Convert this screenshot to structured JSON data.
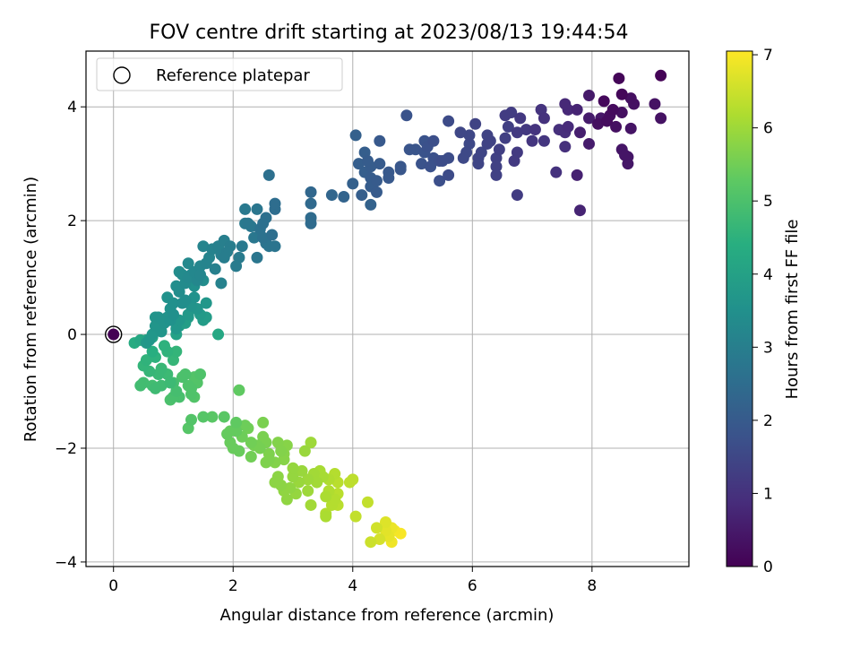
{
  "chart_data": {
    "type": "scatter",
    "title": "FOV centre drift starting at 2023/08/13 19:44:54",
    "xlabel": "Angular distance from reference (arcmin)",
    "ylabel": "Rotation from reference (arcmin)",
    "xlim": [
      -0.46,
      9.62
    ],
    "ylim": [
      -4.08,
      4.98
    ],
    "x_ticks": [
      0,
      2,
      4,
      6,
      8
    ],
    "y_ticks": [
      -4,
      -2,
      0,
      2,
      4
    ],
    "x_tick_labels": [
      "0",
      "2",
      "4",
      "6",
      "8"
    ],
    "y_tick_labels": [
      "−4",
      "−2",
      "0",
      "2",
      "4"
    ],
    "grid": true,
    "legend": {
      "placement": "upper-left",
      "entries": [
        "Reference platepar"
      ]
    },
    "reference_point": {
      "x": 0,
      "y": 0
    },
    "colorbar": {
      "label": "Hours from first FF file",
      "colormap": "viridis",
      "range": [
        0,
        7.05
      ],
      "ticks": [
        0,
        1,
        2,
        3,
        4,
        5,
        6,
        7
      ],
      "tick_labels": [
        "0",
        "1",
        "2",
        "3",
        "4",
        "5",
        "6",
        "7"
      ]
    },
    "series_note_free": true,
    "points": [
      [
        9.15,
        4.55,
        0.05
      ],
      [
        8.45,
        4.5,
        0.1
      ],
      [
        8.5,
        4.22,
        0.12
      ],
      [
        8.2,
        4.1,
        0.15
      ],
      [
        8.35,
        3.95,
        0.2
      ],
      [
        8.25,
        3.75,
        0.22
      ],
      [
        8.3,
        3.85,
        0.25
      ],
      [
        8.1,
        3.7,
        0.28
      ],
      [
        8.5,
        3.9,
        0.3
      ],
      [
        8.65,
        4.15,
        0.3
      ],
      [
        8.7,
        4.05,
        0.32
      ],
      [
        9.05,
        4.05,
        0.35
      ],
      [
        9.15,
        3.8,
        0.35
      ],
      [
        8.65,
        3.62,
        0.38
      ],
      [
        8.5,
        3.25,
        0.4
      ],
      [
        8.55,
        3.15,
        0.4
      ],
      [
        8.6,
        3.0,
        0.42
      ],
      [
        8.6,
        3.12,
        0.42
      ],
      [
        7.95,
        4.2,
        0.5
      ],
      [
        7.95,
        3.8,
        0.55
      ],
      [
        7.95,
        3.35,
        0.55
      ],
      [
        7.8,
        3.55,
        0.6
      ],
      [
        7.75,
        2.8,
        0.65
      ],
      [
        7.75,
        3.95,
        0.7
      ],
      [
        7.8,
        2.18,
        0.7
      ],
      [
        8.4,
        3.65,
        0.3
      ],
      [
        8.15,
        3.8,
        0.45
      ],
      [
        7.6,
        3.95,
        0.8
      ],
      [
        7.55,
        4.05,
        0.8
      ],
      [
        7.6,
        3.65,
        0.85
      ],
      [
        7.55,
        3.55,
        0.9
      ],
      [
        7.55,
        3.3,
        0.95
      ],
      [
        7.45,
        3.6,
        0.95
      ],
      [
        7.4,
        2.85,
        1.0
      ],
      [
        7.2,
        3.8,
        1.0
      ],
      [
        7.15,
        3.95,
        1.05
      ],
      [
        7.05,
        3.6,
        1.05
      ],
      [
        7.0,
        3.4,
        1.1
      ],
      [
        7.2,
        3.4,
        1.1
      ],
      [
        6.9,
        3.6,
        1.15
      ],
      [
        6.8,
        3.8,
        1.15
      ],
      [
        6.75,
        3.55,
        1.2
      ],
      [
        6.75,
        3.2,
        1.2
      ],
      [
        6.75,
        2.45,
        1.25
      ],
      [
        6.7,
        3.05,
        1.2
      ],
      [
        6.65,
        3.9,
        1.25
      ],
      [
        6.55,
        3.85,
        1.25
      ],
      [
        6.6,
        3.65,
        1.3
      ],
      [
        6.55,
        3.45,
        1.3
      ],
      [
        6.45,
        3.25,
        1.3
      ],
      [
        6.4,
        3.1,
        1.35
      ],
      [
        6.4,
        2.95,
        1.35
      ],
      [
        6.4,
        2.8,
        1.35
      ],
      [
        6.3,
        3.4,
        1.4
      ],
      [
        6.25,
        3.5,
        1.4
      ],
      [
        6.1,
        3.1,
        1.45
      ],
      [
        6.1,
        3.0,
        1.45
      ],
      [
        6.05,
        3.7,
        1.4
      ],
      [
        6.15,
        3.2,
        1.45
      ],
      [
        6.25,
        3.35,
        1.4
      ],
      [
        5.95,
        3.5,
        1.5
      ],
      [
        5.95,
        3.35,
        1.55
      ],
      [
        5.9,
        3.2,
        1.55
      ],
      [
        5.85,
        3.1,
        1.55
      ],
      [
        5.8,
        3.55,
        1.5
      ],
      [
        5.6,
        3.75,
        1.6
      ],
      [
        5.6,
        2.8,
        1.6
      ],
      [
        5.6,
        3.1,
        1.65
      ],
      [
        5.5,
        3.05,
        1.65
      ],
      [
        5.45,
        3.05,
        1.7
      ],
      [
        5.45,
        2.7,
        1.7
      ],
      [
        5.35,
        3.4,
        1.7
      ],
      [
        5.35,
        3.1,
        1.75
      ],
      [
        5.3,
        2.95,
        1.75
      ],
      [
        5.25,
        3.3,
        1.75
      ],
      [
        5.2,
        3.4,
        1.8
      ],
      [
        5.2,
        3.2,
        1.8
      ],
      [
        5.15,
        3.0,
        1.8
      ],
      [
        5.05,
        3.25,
        1.85
      ],
      [
        4.95,
        3.25,
        1.85
      ],
      [
        4.9,
        3.85,
        1.8
      ],
      [
        4.8,
        2.95,
        1.9
      ],
      [
        4.8,
        2.9,
        1.9
      ],
      [
        4.6,
        2.85,
        1.95
      ],
      [
        4.6,
        2.75,
        1.95
      ],
      [
        4.45,
        3.4,
        1.95
      ],
      [
        4.45,
        3.0,
        2.0
      ],
      [
        4.4,
        2.7,
        2.0
      ],
      [
        4.4,
        2.5,
        2.0
      ],
      [
        4.3,
        2.95,
        2.05
      ],
      [
        4.3,
        2.75,
        2.05
      ],
      [
        4.3,
        2.6,
        2.05
      ],
      [
        4.25,
        3.05,
        2.05
      ],
      [
        4.2,
        3.2,
        2.1
      ],
      [
        4.2,
        2.85,
        2.1
      ],
      [
        4.15,
        2.45,
        2.1
      ],
      [
        4.1,
        3.0,
        2.1
      ],
      [
        4.05,
        3.5,
        2.15
      ],
      [
        4.0,
        2.65,
        2.15
      ],
      [
        4.3,
        2.28,
        2.2
      ],
      [
        3.85,
        2.42,
        2.25
      ],
      [
        3.65,
        2.45,
        2.3
      ],
      [
        3.3,
        2.5,
        2.35
      ],
      [
        3.3,
        2.3,
        2.4
      ],
      [
        3.3,
        2.05,
        2.45
      ],
      [
        3.3,
        1.95,
        2.45
      ],
      [
        2.7,
        2.2,
        2.5
      ],
      [
        2.7,
        2.3,
        2.5
      ],
      [
        2.6,
        2.8,
        2.6
      ],
      [
        2.65,
        1.75,
        2.55
      ],
      [
        2.55,
        2.05,
        2.6
      ],
      [
        2.5,
        1.95,
        2.6
      ],
      [
        2.45,
        1.85,
        2.65
      ],
      [
        2.5,
        1.7,
        2.65
      ],
      [
        2.55,
        1.6,
        2.7
      ],
      [
        2.6,
        1.55,
        2.7
      ],
      [
        2.7,
        1.55,
        2.7
      ],
      [
        2.4,
        2.2,
        2.75
      ],
      [
        2.4,
        1.35,
        2.75
      ],
      [
        2.35,
        1.7,
        2.8
      ],
      [
        2.3,
        1.9,
        2.8
      ],
      [
        2.25,
        1.95,
        2.8
      ],
      [
        2.2,
        1.95,
        2.85
      ],
      [
        2.2,
        2.2,
        2.85
      ],
      [
        2.15,
        1.55,
        2.85
      ],
      [
        2.1,
        1.35,
        2.9
      ],
      [
        2.05,
        1.2,
        2.9
      ],
      [
        1.95,
        1.55,
        2.95
      ],
      [
        1.9,
        1.45,
        2.95
      ],
      [
        1.85,
        1.35,
        2.95
      ],
      [
        1.8,
        1.4,
        3.0
      ],
      [
        1.85,
        1.65,
        3.0
      ],
      [
        1.75,
        1.55,
        3.05
      ],
      [
        1.7,
        1.15,
        3.05
      ],
      [
        1.8,
        0.9,
        3.1
      ],
      [
        1.65,
        1.5,
        3.1
      ],
      [
        1.6,
        1.35,
        3.15
      ],
      [
        1.55,
        1.25,
        3.15
      ],
      [
        1.5,
        1.55,
        3.15
      ],
      [
        1.45,
        1.2,
        3.2
      ],
      [
        1.45,
        1.05,
        3.2
      ],
      [
        1.4,
        0.95,
        3.25
      ],
      [
        1.35,
        1.1,
        3.25
      ],
      [
        1.3,
        1.05,
        3.3
      ],
      [
        1.25,
        1.25,
        3.3
      ],
      [
        1.25,
        1.0,
        3.3
      ],
      [
        1.2,
        0.9,
        3.35
      ],
      [
        1.15,
        1.05,
        3.35
      ],
      [
        1.1,
        1.1,
        3.4
      ],
      [
        1.1,
        0.75,
        3.4
      ],
      [
        1.05,
        0.85,
        3.45
      ],
      [
        1.15,
        0.55,
        3.45
      ],
      [
        1.2,
        0.6,
        3.45
      ],
      [
        1.0,
        0.55,
        3.5
      ],
      [
        1.0,
        0.35,
        3.5
      ],
      [
        0.95,
        0.45,
        3.55
      ],
      [
        0.95,
        0.25,
        3.55
      ],
      [
        0.9,
        0.65,
        3.55
      ],
      [
        0.9,
        0.3,
        3.6
      ],
      [
        0.85,
        0.2,
        3.6
      ],
      [
        0.8,
        0.05,
        3.65
      ],
      [
        0.75,
        0.3,
        3.6
      ],
      [
        0.7,
        0.3,
        3.65
      ],
      [
        0.7,
        0.15,
        3.65
      ],
      [
        0.65,
        0.0,
        3.7
      ],
      [
        0.6,
        -0.1,
        3.7
      ],
      [
        0.55,
        -0.15,
        3.75
      ],
      [
        1.05,
        0.1,
        3.7
      ],
      [
        1.1,
        0.25,
        3.7
      ],
      [
        1.25,
        0.35,
        3.75
      ],
      [
        1.3,
        0.5,
        3.6
      ],
      [
        1.35,
        0.65,
        3.55
      ],
      [
        1.4,
        0.45,
        3.65
      ],
      [
        1.45,
        0.35,
        3.8
      ],
      [
        1.5,
        0.25,
        3.85
      ],
      [
        1.55,
        0.3,
        3.85
      ],
      [
        1.55,
        0.55,
        3.7
      ],
      [
        1.5,
        0.95,
        3.4
      ],
      [
        1.35,
        0.85,
        3.5
      ],
      [
        1.25,
        0.3,
        3.9
      ],
      [
        1.2,
        0.2,
        3.9
      ],
      [
        1.1,
        0.15,
        3.95
      ],
      [
        1.05,
        0.0,
        4.0
      ],
      [
        1.75,
        0.0,
        4.2
      ],
      [
        0.65,
        -0.05,
        4.1
      ],
      [
        0.55,
        -0.1,
        4.1
      ],
      [
        0.45,
        -0.1,
        4.2
      ],
      [
        0.35,
        -0.15,
        4.3
      ],
      [
        0.65,
        -0.3,
        4.4
      ],
      [
        0.7,
        -0.4,
        4.5
      ],
      [
        0.55,
        -0.45,
        4.55
      ],
      [
        0.5,
        -0.55,
        4.6
      ],
      [
        0.85,
        -0.2,
        4.5
      ],
      [
        0.9,
        -0.3,
        4.55
      ],
      [
        1.05,
        -0.3,
        4.6
      ],
      [
        1.0,
        -0.45,
        4.65
      ],
      [
        0.6,
        -0.65,
        4.65
      ],
      [
        0.75,
        -0.7,
        4.7
      ],
      [
        0.8,
        -0.6,
        4.7
      ],
      [
        0.9,
        -0.7,
        4.75
      ],
      [
        0.95,
        -0.85,
        4.75
      ],
      [
        0.8,
        -0.9,
        4.8
      ],
      [
        0.7,
        -0.95,
        4.8
      ],
      [
        0.65,
        -0.9,
        4.85
      ],
      [
        0.5,
        -0.85,
        4.85
      ],
      [
        0.45,
        -0.9,
        4.85
      ],
      [
        1.0,
        -0.85,
        4.9
      ],
      [
        1.05,
        -1.0,
        4.9
      ],
      [
        1.1,
        -1.1,
        4.95
      ],
      [
        1.0,
        -1.1,
        4.95
      ],
      [
        0.95,
        -1.15,
        5.0
      ],
      [
        1.15,
        -0.75,
        5.0
      ],
      [
        1.2,
        -0.7,
        5.0
      ],
      [
        1.25,
        -0.9,
        5.05
      ],
      [
        1.3,
        -0.95,
        5.05
      ],
      [
        1.3,
        -1.05,
        5.05
      ],
      [
        1.35,
        -1.1,
        5.1
      ],
      [
        1.45,
        -0.7,
        5.05
      ],
      [
        1.4,
        -0.85,
        5.1
      ],
      [
        1.35,
        -0.75,
        5.1
      ],
      [
        1.3,
        -1.5,
        5.1
      ],
      [
        1.25,
        -1.65,
        5.15
      ],
      [
        1.5,
        -1.45,
        5.15
      ],
      [
        1.65,
        -1.45,
        5.2
      ],
      [
        1.85,
        -1.45,
        5.2
      ],
      [
        2.1,
        -0.98,
        5.3
      ],
      [
        2.05,
        -1.55,
        5.3
      ],
      [
        2.05,
        -1.7,
        5.35
      ],
      [
        1.95,
        -1.7,
        5.35
      ],
      [
        1.9,
        -1.75,
        5.35
      ],
      [
        1.95,
        -1.9,
        5.4
      ],
      [
        2.0,
        -2.0,
        5.4
      ],
      [
        2.1,
        -2.05,
        5.4
      ],
      [
        2.15,
        -1.8,
        5.45
      ],
      [
        2.2,
        -1.6,
        5.45
      ],
      [
        2.25,
        -1.65,
        5.5
      ],
      [
        2.3,
        -1.9,
        5.5
      ],
      [
        2.3,
        -2.15,
        5.5
      ],
      [
        2.35,
        -1.95,
        5.55
      ],
      [
        2.4,
        -1.95,
        5.55
      ],
      [
        2.45,
        -2.0,
        5.55
      ],
      [
        2.5,
        -1.55,
        5.6
      ],
      [
        2.5,
        -1.8,
        5.6
      ],
      [
        2.55,
        -1.9,
        5.6
      ],
      [
        2.6,
        -2.1,
        5.65
      ],
      [
        2.55,
        -2.25,
        5.65
      ],
      [
        2.6,
        -2.2,
        5.65
      ],
      [
        2.7,
        -2.25,
        5.7
      ],
      [
        2.75,
        -1.9,
        5.7
      ],
      [
        2.8,
        -2.05,
        5.7
      ],
      [
        2.85,
        -2.1,
        5.75
      ],
      [
        2.85,
        -2.2,
        5.75
      ],
      [
        2.9,
        -1.95,
        5.75
      ],
      [
        2.75,
        -2.5,
        5.8
      ],
      [
        2.7,
        -2.6,
        5.8
      ],
      [
        2.8,
        -2.65,
        5.8
      ],
      [
        2.85,
        -2.75,
        5.85
      ],
      [
        2.9,
        -2.9,
        5.85
      ],
      [
        2.95,
        -2.7,
        5.85
      ],
      [
        3.0,
        -2.5,
        5.9
      ],
      [
        3.0,
        -2.35,
        5.9
      ],
      [
        3.05,
        -2.8,
        5.9
      ],
      [
        3.1,
        -2.6,
        5.95
      ],
      [
        3.15,
        -2.4,
        5.95
      ],
      [
        3.2,
        -2.05,
        5.95
      ],
      [
        3.3,
        -1.9,
        6.0
      ],
      [
        3.25,
        -2.55,
        6.0
      ],
      [
        3.25,
        -2.75,
        6.0
      ],
      [
        3.3,
        -3.0,
        6.05
      ],
      [
        3.35,
        -2.45,
        6.05
      ],
      [
        3.4,
        -2.6,
        6.05
      ],
      [
        3.45,
        -2.4,
        6.1
      ],
      [
        3.5,
        -2.5,
        6.1
      ],
      [
        3.55,
        -2.85,
        6.15
      ],
      [
        3.55,
        -3.2,
        6.15
      ],
      [
        3.55,
        -3.15,
        6.2
      ],
      [
        3.6,
        -2.55,
        6.2
      ],
      [
        3.6,
        -2.75,
        6.2
      ],
      [
        3.65,
        -3.0,
        6.25
      ],
      [
        3.7,
        -2.45,
        6.25
      ],
      [
        3.7,
        -2.9,
        6.25
      ],
      [
        3.75,
        -2.6,
        6.3
      ],
      [
        3.75,
        -2.8,
        6.3
      ],
      [
        3.75,
        -3.0,
        6.3
      ],
      [
        4.0,
        -2.55,
        6.35
      ],
      [
        3.95,
        -2.6,
        6.35
      ],
      [
        4.05,
        -3.2,
        6.4
      ],
      [
        4.25,
        -2.95,
        6.4
      ],
      [
        4.3,
        -3.65,
        6.5
      ],
      [
        4.4,
        -3.4,
        6.55
      ],
      [
        4.45,
        -3.6,
        6.6
      ],
      [
        4.55,
        -3.3,
        6.7
      ],
      [
        4.55,
        -3.45,
        6.75
      ],
      [
        4.6,
        -3.55,
        6.8
      ],
      [
        4.65,
        -3.4,
        6.85
      ],
      [
        4.65,
        -3.65,
        6.9
      ],
      [
        4.7,
        -3.45,
        6.95
      ],
      [
        4.8,
        -3.5,
        7.0
      ]
    ]
  }
}
